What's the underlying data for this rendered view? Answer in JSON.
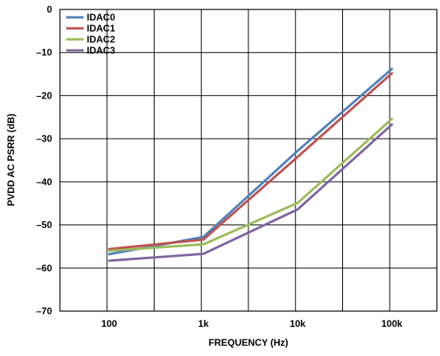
{
  "chart_data": {
    "type": "line",
    "xlabel": "FREQUENCY (Hz)",
    "ylabel": "PVDD AC PSRR (dB)",
    "xscale": "log",
    "xlim": [
      30,
      300000
    ],
    "ylim": [
      -70,
      0
    ],
    "grid": true,
    "legend_position": "top-left",
    "x_ticks": [
      100,
      1000,
      10000,
      100000
    ],
    "x_tick_labels": [
      "100",
      "1k",
      "10k",
      "100k"
    ],
    "y_ticks": [
      0,
      -10,
      -20,
      -30,
      -40,
      -50,
      -60,
      -70
    ],
    "y_tick_labels": [
      "0",
      "–10",
      "–20",
      "–30",
      "–40",
      "–50",
      "–60",
      "–70"
    ],
    "x": [
      100,
      1000,
      10000,
      100000
    ],
    "series": [
      {
        "name": "IDAC0",
        "color": "#4f81bd",
        "values": [
          -56.8,
          -52.8,
          -32.8,
          -13.8
        ]
      },
      {
        "name": "IDAC1",
        "color": "#c0504d",
        "values": [
          -55.6,
          -53.4,
          -34.2,
          -14.8
        ]
      },
      {
        "name": "IDAC2",
        "color": "#9bbb59",
        "values": [
          -56.0,
          -54.5,
          -44.9,
          -25.4
        ]
      },
      {
        "name": "IDAC3",
        "color": "#8064a2",
        "values": [
          -58.3,
          -56.7,
          -46.4,
          -26.7
        ]
      }
    ]
  }
}
